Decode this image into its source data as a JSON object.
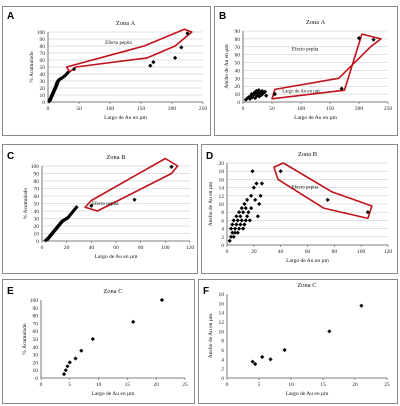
{
  "colors": {
    "marker": "#000000",
    "highlight": "#c0141c",
    "grid": "#c4c4c4",
    "axis": "#555555"
  },
  "panels": [
    {
      "letter": "A"
    },
    {
      "letter": "B"
    },
    {
      "letter": "C"
    },
    {
      "letter": "D"
    },
    {
      "letter": "E"
    },
    {
      "letter": "F"
    }
  ],
  "chart_data": [
    {
      "id": "A",
      "type": "scatter",
      "title": "Zona A",
      "xlabel": "Largo de Au en µm",
      "ylabel": "% Acumulado",
      "xlim": [
        0,
        250
      ],
      "ylim": [
        0,
        100
      ],
      "xticks": [
        0,
        50,
        100,
        150,
        200,
        250
      ],
      "yticks": [
        0,
        10,
        20,
        30,
        40,
        50,
        60,
        70,
        80,
        90,
        100
      ],
      "grid": true,
      "annotation": {
        "text": "Efecto pepita",
        "x": 135,
        "y": 83
      },
      "points": [
        [
          2,
          1
        ],
        [
          3,
          2
        ],
        [
          3,
          3
        ],
        [
          4,
          4
        ],
        [
          4,
          5
        ],
        [
          5,
          6
        ],
        [
          5,
          7
        ],
        [
          6,
          8
        ],
        [
          6,
          9
        ],
        [
          7,
          10
        ],
        [
          7,
          11
        ],
        [
          8,
          12
        ],
        [
          8,
          13
        ],
        [
          9,
          14
        ],
        [
          9,
          15
        ],
        [
          10,
          16
        ],
        [
          10,
          17
        ],
        [
          11,
          18
        ],
        [
          11,
          19
        ],
        [
          12,
          20
        ],
        [
          12,
          21
        ],
        [
          13,
          22
        ],
        [
          13,
          23
        ],
        [
          14,
          24
        ],
        [
          14,
          25
        ],
        [
          14,
          26
        ],
        [
          15,
          27
        ],
        [
          15,
          28
        ],
        [
          16,
          29
        ],
        [
          16,
          30
        ],
        [
          17,
          31
        ],
        [
          18,
          32
        ],
        [
          20,
          33
        ],
        [
          22,
          34
        ],
        [
          25,
          36
        ],
        [
          28,
          38
        ],
        [
          30,
          40
        ],
        [
          32,
          42
        ],
        [
          42,
          47
        ],
        [
          165,
          52
        ],
        [
          170,
          57
        ],
        [
          205,
          63
        ],
        [
          215,
          78
        ],
        [
          225,
          98
        ]
      ],
      "highlight": [
        [
          35,
          43
        ],
        [
          45,
          50
        ],
        [
          160,
          63
        ],
        [
          205,
          80
        ],
        [
          232,
          100
        ],
        [
          220,
          104
        ],
        [
          155,
          80
        ],
        [
          30,
          50
        ]
      ]
    },
    {
      "id": "B",
      "type": "scatter",
      "title": "Zona A",
      "xlabel": "Largo de Au en µm",
      "ylabel": "Ancho de Au en µm",
      "xlim": [
        0,
        250
      ],
      "ylim": [
        0,
        90
      ],
      "xticks": [
        0,
        50,
        100,
        150,
        200,
        250
      ],
      "yticks": [
        0,
        10,
        20,
        30,
        40,
        50,
        60,
        70,
        80,
        90
      ],
      "grid": true,
      "annotation": {
        "text": "Efecto pepita",
        "x": 130,
        "y": 65
      },
      "annotation2": {
        "text": "Largo de Au en µm",
        "x": 100,
        "y": 12
      },
      "points": [
        [
          5,
          3
        ],
        [
          8,
          5
        ],
        [
          10,
          6
        ],
        [
          12,
          4
        ],
        [
          14,
          8
        ],
        [
          15,
          10
        ],
        [
          16,
          6
        ],
        [
          18,
          9
        ],
        [
          20,
          12
        ],
        [
          21,
          5
        ],
        [
          22,
          11
        ],
        [
          23,
          14
        ],
        [
          24,
          8
        ],
        [
          25,
          13
        ],
        [
          26,
          10
        ],
        [
          27,
          15
        ],
        [
          28,
          7
        ],
        [
          30,
          12
        ],
        [
          32,
          9
        ],
        [
          33,
          14
        ],
        [
          35,
          11
        ],
        [
          38,
          13
        ],
        [
          40,
          8
        ],
        [
          55,
          10
        ],
        [
          170,
          17
        ],
        [
          200,
          81
        ],
        [
          225,
          79
        ]
      ],
      "highlight": [
        [
          50,
          4
        ],
        [
          175,
          15
        ],
        [
          205,
          86
        ],
        [
          238,
          80
        ],
        [
          220,
          70
        ],
        [
          165,
          30
        ],
        [
          55,
          16
        ]
      ]
    },
    {
      "id": "C",
      "type": "scatter",
      "title": "Zona B",
      "xlabel": "Largo de Au en µm",
      "ylabel": "% Acumulado",
      "xlim": [
        0,
        120
      ],
      "ylim": [
        0,
        100
      ],
      "xticks": [
        0,
        20,
        40,
        60,
        80,
        100,
        120
      ],
      "yticks": [
        0,
        10,
        20,
        30,
        40,
        50,
        60,
        70,
        80,
        90,
        100
      ],
      "grid": true,
      "annotation": {
        "text": "Efecto pepita",
        "x": 62,
        "y": 48
      },
      "points": [
        [
          3,
          1
        ],
        [
          4,
          2
        ],
        [
          5,
          3
        ],
        [
          5,
          4
        ],
        [
          6,
          5
        ],
        [
          6,
          6
        ],
        [
          7,
          7
        ],
        [
          7,
          8
        ],
        [
          8,
          9
        ],
        [
          8,
          10
        ],
        [
          9,
          11
        ],
        [
          9,
          12
        ],
        [
          10,
          13
        ],
        [
          10,
          14
        ],
        [
          11,
          15
        ],
        [
          11,
          16
        ],
        [
          12,
          17
        ],
        [
          12,
          18
        ],
        [
          13,
          19
        ],
        [
          13,
          20
        ],
        [
          14,
          21
        ],
        [
          14,
          22
        ],
        [
          15,
          23
        ],
        [
          15,
          24
        ],
        [
          16,
          25
        ],
        [
          16,
          26
        ],
        [
          17,
          27
        ],
        [
          18,
          28
        ],
        [
          19,
          29
        ],
        [
          20,
          30
        ],
        [
          21,
          31
        ],
        [
          22,
          33
        ],
        [
          23,
          35
        ],
        [
          24,
          37
        ],
        [
          25,
          39
        ],
        [
          26,
          41
        ],
        [
          27,
          43
        ],
        [
          28,
          45
        ],
        [
          40,
          47
        ],
        [
          75,
          55
        ],
        [
          105,
          99
        ]
      ],
      "highlight": [
        [
          35,
          45
        ],
        [
          45,
          40
        ],
        [
          105,
          90
        ],
        [
          110,
          100
        ],
        [
          100,
          110
        ],
        [
          40,
          54
        ]
      ]
    },
    {
      "id": "D",
      "type": "scatter",
      "title": "Zona B",
      "xlabel": "Largo de Au en µm",
      "ylabel": "Ancho de Au en µm",
      "xlim": [
        0,
        120
      ],
      "ylim": [
        0,
        20
      ],
      "xticks": [
        0,
        20,
        40,
        60,
        80,
        100,
        120
      ],
      "yticks": [
        0,
        2,
        4,
        6,
        8,
        10,
        12,
        14,
        16,
        18,
        20
      ],
      "grid": true,
      "annotation": {
        "text": "Efecto pepita",
        "x": 68,
        "y": 13.8
      },
      "points": [
        [
          2,
          1
        ],
        [
          3,
          2
        ],
        [
          3,
          4
        ],
        [
          4,
          3
        ],
        [
          4,
          5
        ],
        [
          5,
          2
        ],
        [
          5,
          6
        ],
        [
          6,
          3
        ],
        [
          6,
          4
        ],
        [
          7,
          5
        ],
        [
          7,
          7
        ],
        [
          8,
          3
        ],
        [
          8,
          6
        ],
        [
          9,
          4
        ],
        [
          9,
          8
        ],
        [
          10,
          5
        ],
        [
          10,
          7
        ],
        [
          11,
          6
        ],
        [
          11,
          9
        ],
        [
          12,
          4
        ],
        [
          12,
          8
        ],
        [
          13,
          5
        ],
        [
          13,
          10
        ],
        [
          14,
          6
        ],
        [
          14,
          9
        ],
        [
          15,
          7
        ],
        [
          15,
          11
        ],
        [
          16,
          8
        ],
        [
          17,
          6
        ],
        [
          18,
          12
        ],
        [
          18,
          9
        ],
        [
          19,
          18
        ],
        [
          20,
          14
        ],
        [
          21,
          11
        ],
        [
          22,
          15
        ],
        [
          23,
          7
        ],
        [
          24,
          10
        ],
        [
          25,
          12
        ],
        [
          26,
          15
        ],
        [
          40,
          18
        ],
        [
          75,
          11
        ],
        [
          105,
          8
        ]
      ],
      "highlight": [
        [
          35,
          19
        ],
        [
          42,
          20
        ],
        [
          78,
          13
        ],
        [
          108,
          9.5
        ],
        [
          105,
          6.5
        ],
        [
          72,
          9
        ],
        [
          38,
          16
        ]
      ]
    },
    {
      "id": "E",
      "type": "scatter",
      "title": "Zona C",
      "xlabel": "Largo de Au en µm",
      "ylabel": "% Acumulado",
      "xlim": [
        0,
        25
      ],
      "ylim": [
        0,
        100
      ],
      "xticks": [
        0,
        5,
        10,
        15,
        20,
        25
      ],
      "yticks": [
        0,
        10,
        20,
        30,
        40,
        50,
        60,
        70,
        80,
        90,
        100
      ],
      "grid": false,
      "points": [
        [
          4,
          5
        ],
        [
          4.3,
          10
        ],
        [
          4.6,
          15
        ],
        [
          5,
          20
        ],
        [
          6,
          25
        ],
        [
          7,
          35
        ],
        [
          9,
          50
        ],
        [
          16,
          72
        ],
        [
          21,
          100
        ]
      ]
    },
    {
      "id": "F",
      "type": "scatter",
      "title": "Zona C",
      "xlabel": "Largo de Au en µm",
      "ylabel": "Ancho de Au en µm",
      "xlim": [
        0,
        25
      ],
      "ylim": [
        0,
        18
      ],
      "xticks": [
        0,
        5,
        10,
        15,
        20,
        25
      ],
      "yticks": [
        0,
        2,
        4,
        6,
        8,
        10,
        12,
        14,
        16,
        18
      ],
      "grid": false,
      "points": [
        [
          4,
          3.5
        ],
        [
          4.4,
          3
        ],
        [
          5.5,
          4.5
        ],
        [
          6.8,
          4
        ],
        [
          9,
          6
        ],
        [
          16,
          10
        ],
        [
          21,
          15.5
        ]
      ]
    }
  ]
}
